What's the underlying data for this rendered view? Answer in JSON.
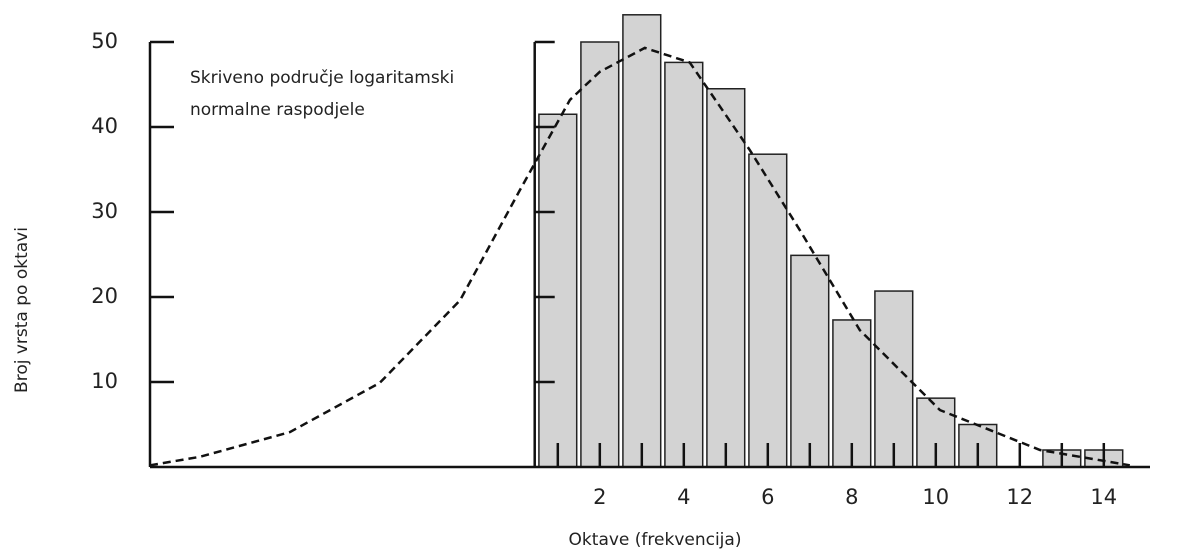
{
  "chart_data": {
    "type": "bar",
    "y_axis_label": "Broj vrsta po oktavi",
    "x_axis_label": "Oktave (frekvencija)",
    "annotation": [
      "Skriveno područje logaritamski",
      "normalne raspodjele"
    ],
    "x": [
      1,
      2,
      3,
      4,
      5,
      6,
      7,
      8,
      9,
      10,
      11,
      12,
      13,
      14
    ],
    "values": [
      41.5,
      50,
      53.2,
      47.6,
      44.5,
      36.8,
      24.9,
      17.3,
      20.7,
      8.1,
      5,
      0,
      2,
      2
    ],
    "bar_width": 0.9,
    "color": "#d3d3d3",
    "curve": {
      "x": [
        -8.71,
        -7.52,
        -5.38,
        -3.24,
        -1.33,
        0.1,
        1.29,
        2.0,
        3.07,
        4.14,
        5.57,
        6.76,
        8.19,
        10.1,
        12.48,
        14.62
      ],
      "values": [
        0.2,
        1.2,
        4.1,
        9.9,
        19.6,
        32.6,
        43.2,
        46.5,
        49.3,
        47.6,
        37.3,
        27.9,
        16.1,
        6.7,
        2.0,
        0.2
      ],
      "dashed": true
    },
    "xlim": [
      -8.71,
      15.1
    ],
    "xticks": [
      2,
      4,
      6,
      8,
      10,
      12,
      14
    ],
    "xminor_ticks": [
      1,
      3,
      5,
      7,
      9,
      11,
      13
    ],
    "ylim": [
      0,
      50
    ],
    "yticks": [
      10,
      20,
      30,
      40,
      50
    ],
    "inner_axis_x": 0.45
  }
}
